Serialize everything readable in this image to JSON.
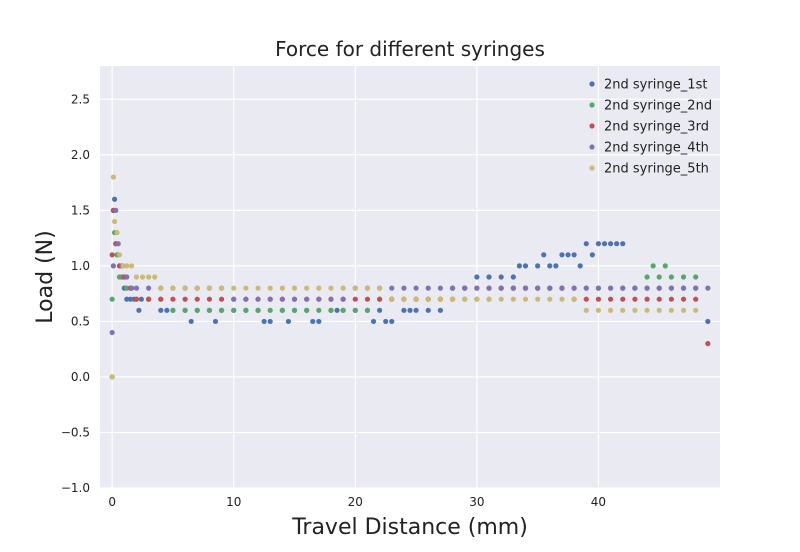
{
  "chart_data": {
    "type": "scatter",
    "title": "Force for different syringes",
    "xlabel": "Travel Distance (mm)",
    "ylabel": "Load (N)",
    "xlim": [
      -1,
      50
    ],
    "ylim": [
      -1.0,
      2.8
    ],
    "xticks": [
      0,
      10,
      20,
      30,
      40
    ],
    "xtick_labels": [
      "0",
      "10",
      "20",
      "30",
      "40"
    ],
    "yticks": [
      -1.0,
      -0.5,
      0.0,
      0.5,
      1.0,
      1.5,
      2.0,
      2.5
    ],
    "ytick_labels": [
      "−1.0",
      "−0.5",
      "0.0",
      "0.5",
      "1.0",
      "1.5",
      "2.0",
      "2.5"
    ],
    "grid": true,
    "legend_position": "top-right",
    "background_color": "#EAEAF2",
    "series": [
      {
        "name": "2nd syringe_1st",
        "color": "#4C72B0",
        "x": [
          0,
          0.1,
          0.2,
          0.3,
          0.5,
          0.8,
          1.0,
          1.2,
          1.5,
          1.8,
          2.2,
          2.4,
          3.0,
          4.0,
          4.5,
          5.0,
          6.0,
          6.5,
          7.0,
          8.0,
          8.5,
          9.0,
          10.0,
          11.0,
          12.0,
          12.5,
          13.0,
          14.0,
          14.5,
          15.0,
          16.0,
          16.5,
          17.0,
          18.0,
          18.5,
          19.0,
          20.0,
          21.0,
          21.5,
          22.0,
          22.5,
          23.0,
          24.0,
          24.5,
          25.0,
          26.0,
          27.0,
          28.0,
          29.0,
          30.0,
          31.0,
          32.0,
          33.0,
          33.5,
          34.0,
          35.0,
          35.5,
          36.0,
          36.5,
          37.0,
          37.5,
          38.0,
          38.5,
          39.0,
          39.5,
          40.0,
          40.5,
          41.0,
          41.5,
          42.0,
          43.0,
          44.0,
          45.0,
          46.0,
          47.0,
          48.0,
          49.0
        ],
        "y": [
          0.0,
          1.5,
          1.6,
          1.2,
          1.1,
          0.9,
          0.8,
          0.7,
          0.7,
          0.7,
          0.6,
          0.7,
          0.7,
          0.6,
          0.6,
          0.6,
          0.6,
          0.5,
          0.6,
          0.6,
          0.5,
          0.6,
          0.6,
          0.6,
          0.6,
          0.5,
          0.5,
          0.6,
          0.5,
          0.6,
          0.6,
          0.5,
          0.5,
          0.6,
          0.6,
          0.6,
          0.6,
          0.6,
          0.5,
          0.6,
          0.5,
          0.5,
          0.6,
          0.6,
          0.6,
          0.6,
          0.6,
          0.8,
          0.8,
          0.9,
          0.9,
          0.9,
          0.9,
          1.0,
          1.0,
          1.0,
          1.1,
          1.0,
          1.0,
          1.1,
          1.1,
          1.1,
          1.0,
          1.2,
          1.1,
          1.2,
          1.2,
          1.2,
          1.2,
          1.2,
          0.8,
          0.8,
          0.8,
          0.8,
          0.8,
          0.8,
          0.5
        ]
      },
      {
        "name": "2nd syringe_2nd",
        "color": "#55A868",
        "x": [
          0,
          0.2,
          0.4,
          0.6,
          0.9,
          1.2,
          1.6,
          2.0,
          3.0,
          4.0,
          5.0,
          6.0,
          7.0,
          8.0,
          9.0,
          10.0,
          11.0,
          12.0,
          13.0,
          14.0,
          15.0,
          16.0,
          17.0,
          18.0,
          19.0,
          20.0,
          21.0,
          22.0,
          23.0,
          24.0,
          25.0,
          26.0,
          27.0,
          28.0,
          29.0,
          30.0,
          31.0,
          32.0,
          33.0,
          34.0,
          35.0,
          36.0,
          37.0,
          38.0,
          39.0,
          40.0,
          41.0,
          42.0,
          43.0,
          44.0,
          44.5,
          45.0,
          45.5,
          46.0,
          47.0,
          48.0
        ],
        "y": [
          0.7,
          1.3,
          1.1,
          0.9,
          0.9,
          0.8,
          0.8,
          0.7,
          0.7,
          0.7,
          0.6,
          0.6,
          0.6,
          0.6,
          0.6,
          0.6,
          0.6,
          0.6,
          0.6,
          0.6,
          0.6,
          0.6,
          0.6,
          0.6,
          0.6,
          0.6,
          0.6,
          0.7,
          0.7,
          0.7,
          0.7,
          0.7,
          0.7,
          0.7,
          0.7,
          0.7,
          0.7,
          0.8,
          0.8,
          0.8,
          0.8,
          0.8,
          0.8,
          0.8,
          0.8,
          0.8,
          0.8,
          0.8,
          0.8,
          0.9,
          1.0,
          0.9,
          1.0,
          0.9,
          0.9,
          0.9
        ]
      },
      {
        "name": "2nd syringe_3rd",
        "color": "#C44E52",
        "x": [
          0,
          0.1,
          0.3,
          0.6,
          1.0,
          1.5,
          2.0,
          3.0,
          4.0,
          5.0,
          6.0,
          7.0,
          8.0,
          9.0,
          10.0,
          11.0,
          12.0,
          13.0,
          14.0,
          15.0,
          16.0,
          17.0,
          18.0,
          19.0,
          20.0,
          21.0,
          22.0,
          23.0,
          24.0,
          25.0,
          26.0,
          27.0,
          28.0,
          29.0,
          30.0,
          31.0,
          32.0,
          33.0,
          34.0,
          35.0,
          36.0,
          37.0,
          38.0,
          39.0,
          40.0,
          41.0,
          42.0,
          43.0,
          44.0,
          45.0,
          46.0,
          47.0,
          48.0,
          49.0
        ],
        "y": [
          1.1,
          1.5,
          1.2,
          1.0,
          0.9,
          0.8,
          0.7,
          0.7,
          0.7,
          0.7,
          0.7,
          0.7,
          0.7,
          0.7,
          0.7,
          0.7,
          0.7,
          0.7,
          0.7,
          0.7,
          0.7,
          0.7,
          0.7,
          0.7,
          0.7,
          0.7,
          0.7,
          0.7,
          0.7,
          0.7,
          0.7,
          0.7,
          0.7,
          0.8,
          0.8,
          0.8,
          0.8,
          0.8,
          0.8,
          0.8,
          0.8,
          0.8,
          0.7,
          0.7,
          0.7,
          0.7,
          0.7,
          0.7,
          0.7,
          0.7,
          0.7,
          0.7,
          0.7,
          0.3
        ]
      },
      {
        "name": "2nd syringe_4th",
        "color": "#8172B2",
        "x": [
          0,
          0.1,
          0.3,
          0.5,
          0.8,
          1.2,
          1.6,
          2.0,
          3.0,
          4.0,
          5.0,
          6.0,
          7.0,
          8.0,
          9.0,
          10.0,
          11.0,
          12.0,
          13.0,
          14.0,
          15.0,
          16.0,
          17.0,
          18.0,
          19.0,
          20.0,
          21.0,
          22.0,
          23.0,
          24.0,
          25.0,
          26.0,
          27.0,
          28.0,
          29.0,
          30.0,
          31.0,
          32.0,
          33.0,
          34.0,
          35.0,
          36.0,
          37.0,
          38.0,
          39.0,
          40.0,
          41.0,
          42.0,
          43.0,
          44.0,
          45.0,
          46.0,
          47.0,
          48.0,
          49.0
        ],
        "y": [
          0.4,
          1.0,
          1.5,
          1.2,
          1.0,
          0.9,
          0.8,
          0.8,
          0.8,
          0.8,
          0.8,
          0.8,
          0.8,
          0.8,
          0.8,
          0.7,
          0.7,
          0.7,
          0.7,
          0.7,
          0.7,
          0.7,
          0.7,
          0.7,
          0.7,
          0.8,
          0.8,
          0.8,
          0.8,
          0.8,
          0.8,
          0.8,
          0.8,
          0.8,
          0.8,
          0.8,
          0.8,
          0.8,
          0.8,
          0.8,
          0.8,
          0.8,
          0.8,
          0.8,
          0.8,
          0.8,
          0.8,
          0.8,
          0.8,
          0.8,
          0.8,
          0.8,
          0.8,
          0.8,
          0.8
        ]
      },
      {
        "name": "2nd syringe_5th",
        "color": "#CCB974",
        "x": [
          0,
          0.1,
          0.2,
          0.4,
          0.6,
          0.9,
          1.2,
          1.6,
          2.0,
          2.5,
          3.0,
          3.5,
          4.0,
          5.0,
          6.0,
          7.0,
          8.0,
          9.0,
          10.0,
          11.0,
          12.0,
          13.0,
          14.0,
          15.0,
          16.0,
          17.0,
          18.0,
          19.0,
          20.0,
          21.0,
          22.0,
          23.0,
          24.0,
          25.0,
          26.0,
          27.0,
          28.0,
          29.0,
          30.0,
          31.0,
          32.0,
          33.0,
          34.0,
          35.0,
          36.0,
          37.0,
          38.0,
          39.0,
          40.0,
          41.0,
          42.0,
          43.0,
          44.0,
          45.0,
          46.0,
          47.0,
          48.0
        ],
        "y": [
          0.0,
          1.8,
          1.4,
          1.3,
          1.1,
          1.0,
          1.0,
          1.0,
          0.9,
          0.9,
          0.9,
          0.9,
          0.8,
          0.8,
          0.8,
          0.8,
          0.8,
          0.8,
          0.8,
          0.8,
          0.8,
          0.8,
          0.8,
          0.8,
          0.8,
          0.8,
          0.8,
          0.8,
          0.8,
          0.8,
          0.8,
          0.7,
          0.7,
          0.7,
          0.7,
          0.7,
          0.7,
          0.7,
          0.7,
          0.7,
          0.7,
          0.7,
          0.7,
          0.7,
          0.7,
          0.7,
          0.7,
          0.6,
          0.6,
          0.6,
          0.6,
          0.6,
          0.6,
          0.6,
          0.6,
          0.6,
          0.6
        ]
      }
    ]
  }
}
